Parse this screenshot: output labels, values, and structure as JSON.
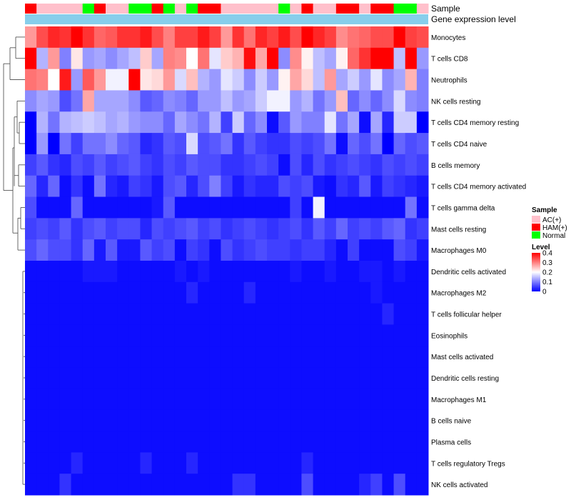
{
  "chart_data": {
    "type": "heatmap",
    "title": "",
    "annotation_rows": [
      "Sample",
      "Gene expression level"
    ],
    "row_labels": [
      "Monocytes",
      "T cells CD8",
      "Neutrophils",
      "NK cells resting",
      "T cells CD4 memory resting",
      "T cells CD4 naive",
      "B cells memory",
      "T cells CD4 memory activated",
      "T cells gamma delta",
      "Mast cells resting",
      "Macrophages M0",
      "Dendritic cells activated",
      "Macrophages M2",
      "T cells follicular helper",
      "Eosinophils",
      "Mast cells activated",
      "Dendritic cells resting",
      "Macrophages M1",
      "B cells naive",
      "Plasma cells",
      "T cells regulatory  Tregs",
      "NK cells activated"
    ],
    "sample_groups": [
      "HAM(+)",
      "AC(+)",
      "AC(+)",
      "AC(+)",
      "AC(+)",
      "Normal",
      "HAM(+)",
      "AC(+)",
      "AC(+)",
      "Normal",
      "Normal",
      "HAM(+)",
      "Normal",
      "AC(+)",
      "Normal",
      "HAM(+)",
      "HAM(+)",
      "AC(+)",
      "AC(+)",
      "AC(+)",
      "AC(+)",
      "AC(+)",
      "Normal",
      "AC(+)",
      "HAM(+)",
      "AC(+)",
      "AC(+)",
      "HAM(+)",
      "HAM(+)",
      "AC(+)",
      "HAM(+)",
      "HAM(+)",
      "Normal",
      "Normal",
      "AC(+)"
    ],
    "values": [
      [
        0.28,
        0.34,
        0.37,
        0.36,
        0.4,
        0.36,
        0.32,
        0.33,
        0.36,
        0.36,
        0.38,
        0.34,
        0.3,
        0.35,
        0.35,
        0.38,
        0.35,
        0.28,
        0.36,
        0.31,
        0.37,
        0.35,
        0.38,
        0.34,
        0.4,
        0.37,
        0.35,
        0.29,
        0.31,
        0.32,
        0.34,
        0.34,
        0.4,
        0.35,
        0.34
      ],
      [
        0.4,
        0.14,
        0.28,
        0.1,
        0.22,
        0.12,
        0.13,
        0.11,
        0.13,
        0.15,
        0.24,
        0.13,
        0.3,
        0.29,
        0.2,
        0.31,
        0.18,
        0.24,
        0.26,
        0.39,
        0.27,
        0.4,
        0.11,
        0.29,
        0.21,
        0.15,
        0.13,
        0.21,
        0.32,
        0.36,
        0.4,
        0.4,
        0.15,
        0.4,
        0.12
      ],
      [
        0.31,
        0.3,
        0.2,
        0.38,
        0.12,
        0.33,
        0.28,
        0.19,
        0.19,
        0.4,
        0.22,
        0.23,
        0.28,
        0.17,
        0.25,
        0.14,
        0.12,
        0.18,
        0.16,
        0.11,
        0.16,
        0.12,
        0.21,
        0.27,
        0.23,
        0.15,
        0.28,
        0.13,
        0.16,
        0.12,
        0.18,
        0.11,
        0.13,
        0.26,
        0.1
      ],
      [
        0.11,
        0.13,
        0.12,
        0.06,
        0.09,
        0.27,
        0.13,
        0.13,
        0.13,
        0.11,
        0.07,
        0.08,
        0.11,
        0.1,
        0.08,
        0.12,
        0.12,
        0.15,
        0.12,
        0.13,
        0.16,
        0.19,
        0.19,
        0.12,
        0.14,
        0.09,
        0.12,
        0.25,
        0.08,
        0.11,
        0.08,
        0.11,
        0.17,
        0.11,
        0.1
      ],
      [
        0.0,
        0.14,
        0.09,
        0.14,
        0.15,
        0.16,
        0.15,
        0.13,
        0.14,
        0.12,
        0.11,
        0.11,
        0.08,
        0.13,
        0.11,
        0.09,
        0.14,
        0.05,
        0.16,
        0.08,
        0.11,
        0.01,
        0.07,
        0.12,
        0.1,
        0.1,
        0.18,
        0.09,
        0.13,
        0.01,
        0.13,
        0.03,
        0.16,
        0.16,
        0.0
      ],
      [
        0.0,
        0.12,
        0.0,
        0.09,
        0.05,
        0.09,
        0.09,
        0.11,
        0.08,
        0.07,
        0.03,
        0.04,
        0.07,
        0.06,
        0.17,
        0.06,
        0.07,
        0.09,
        0.04,
        0.07,
        0.05,
        0.04,
        0.04,
        0.06,
        0.05,
        0.06,
        0.09,
        0.01,
        0.08,
        0.06,
        0.09,
        0.0,
        0.08,
        0.06,
        0.07
      ],
      [
        0.05,
        0.07,
        0.04,
        0.03,
        0.06,
        0.05,
        0.07,
        0.05,
        0.06,
        0.07,
        0.05,
        0.04,
        0.06,
        0.05,
        0.07,
        0.06,
        0.06,
        0.04,
        0.04,
        0.05,
        0.06,
        0.05,
        0.01,
        0.06,
        0.03,
        0.06,
        0.04,
        0.05,
        0.06,
        0.05,
        0.04,
        0.06,
        0.05,
        0.06,
        0.05
      ],
      [
        0.08,
        0.03,
        0.08,
        0.01,
        0.04,
        0.01,
        0.09,
        0.03,
        0.02,
        0.05,
        0.04,
        0.02,
        0.06,
        0.07,
        0.03,
        0.06,
        0.1,
        0.05,
        0.02,
        0.04,
        0.03,
        0.03,
        0.06,
        0.05,
        0.06,
        0.02,
        0.01,
        0.04,
        0.03,
        0.07,
        0.02,
        0.05,
        0.04,
        0.03,
        0.02
      ],
      [
        0.06,
        0.01,
        0.01,
        0.01,
        0.08,
        0.01,
        0.01,
        0.01,
        0.01,
        0.01,
        0.01,
        0.02,
        0.07,
        0.01,
        0.01,
        0.01,
        0.01,
        0.01,
        0.01,
        0.01,
        0.01,
        0.01,
        0.01,
        0.05,
        0.01,
        0.19,
        0.01,
        0.01,
        0.01,
        0.01,
        0.01,
        0.01,
        0.01,
        0.09,
        0.01
      ],
      [
        0.05,
        0.06,
        0.05,
        0.07,
        0.04,
        0.06,
        0.07,
        0.05,
        0.06,
        0.06,
        0.03,
        0.06,
        0.05,
        0.06,
        0.07,
        0.05,
        0.06,
        0.04,
        0.05,
        0.06,
        0.05,
        0.04,
        0.05,
        0.06,
        0.04,
        0.07,
        0.05,
        0.08,
        0.05,
        0.06,
        0.05,
        0.07,
        0.08,
        0.04,
        0.05
      ],
      [
        0.06,
        0.08,
        0.06,
        0.06,
        0.04,
        0.08,
        0.02,
        0.07,
        0.02,
        0.02,
        0.07,
        0.05,
        0.06,
        0.01,
        0.05,
        0.04,
        0.01,
        0.06,
        0.04,
        0.05,
        0.06,
        0.05,
        0.05,
        0.04,
        0.05,
        0.05,
        0.03,
        0.01,
        0.05,
        0.01,
        0.01,
        0.01,
        0.06,
        0.05,
        0.02
      ],
      [
        0.01,
        0.01,
        0.01,
        0.01,
        0.01,
        0.02,
        0.02,
        0.02,
        0.01,
        0.01,
        0.01,
        0.01,
        0.01,
        0.02,
        0.01,
        0.02,
        0.01,
        0.01,
        0.01,
        0.01,
        0.01,
        0.01,
        0.01,
        0.02,
        0.01,
        0.01,
        0.02,
        0.01,
        0.01,
        0.02,
        0.02,
        0.01,
        0.02,
        0.01,
        0.01
      ],
      [
        0.01,
        0.01,
        0.01,
        0.01,
        0.01,
        0.01,
        0.01,
        0.01,
        0.01,
        0.01,
        0.01,
        0.01,
        0.01,
        0.01,
        0.03,
        0.01,
        0.01,
        0.01,
        0.01,
        0.03,
        0.01,
        0.01,
        0.01,
        0.01,
        0.01,
        0.01,
        0.01,
        0.01,
        0.01,
        0.01,
        0.02,
        0.01,
        0.01,
        0.01,
        0.01
      ],
      [
        0.01,
        0.01,
        0.01,
        0.01,
        0.01,
        0.01,
        0.01,
        0.01,
        0.01,
        0.01,
        0.01,
        0.01,
        0.01,
        0.01,
        0.01,
        0.01,
        0.01,
        0.01,
        0.01,
        0.01,
        0.01,
        0.01,
        0.01,
        0.01,
        0.01,
        0.01,
        0.01,
        0.01,
        0.01,
        0.01,
        0.01,
        0.03,
        0.01,
        0.01,
        0.01
      ],
      [
        0.01,
        0.01,
        0.01,
        0.01,
        0.01,
        0.01,
        0.01,
        0.01,
        0.01,
        0.01,
        0.01,
        0.01,
        0.01,
        0.01,
        0.01,
        0.01,
        0.01,
        0.01,
        0.01,
        0.01,
        0.01,
        0.01,
        0.01,
        0.01,
        0.01,
        0.01,
        0.01,
        0.01,
        0.01,
        0.01,
        0.01,
        0.01,
        0.01,
        0.01,
        0.01
      ],
      [
        0.01,
        0.01,
        0.01,
        0.01,
        0.01,
        0.01,
        0.01,
        0.01,
        0.01,
        0.01,
        0.01,
        0.01,
        0.01,
        0.01,
        0.01,
        0.01,
        0.01,
        0.01,
        0.01,
        0.01,
        0.01,
        0.01,
        0.01,
        0.01,
        0.01,
        0.01,
        0.01,
        0.01,
        0.01,
        0.01,
        0.01,
        0.01,
        0.01,
        0.01,
        0.01
      ],
      [
        0.01,
        0.01,
        0.01,
        0.01,
        0.01,
        0.01,
        0.01,
        0.01,
        0.01,
        0.01,
        0.01,
        0.01,
        0.01,
        0.01,
        0.01,
        0.01,
        0.01,
        0.01,
        0.01,
        0.01,
        0.01,
        0.01,
        0.01,
        0.01,
        0.01,
        0.01,
        0.01,
        0.01,
        0.01,
        0.01,
        0.01,
        0.01,
        0.01,
        0.01,
        0.01
      ],
      [
        0.01,
        0.01,
        0.01,
        0.01,
        0.01,
        0.01,
        0.01,
        0.01,
        0.01,
        0.01,
        0.01,
        0.01,
        0.01,
        0.01,
        0.01,
        0.01,
        0.01,
        0.01,
        0.01,
        0.01,
        0.01,
        0.01,
        0.01,
        0.01,
        0.01,
        0.01,
        0.01,
        0.01,
        0.01,
        0.01,
        0.01,
        0.01,
        0.01,
        0.01,
        0.01
      ],
      [
        0.01,
        0.01,
        0.01,
        0.01,
        0.01,
        0.01,
        0.01,
        0.01,
        0.01,
        0.01,
        0.01,
        0.01,
        0.01,
        0.01,
        0.01,
        0.01,
        0.01,
        0.01,
        0.01,
        0.01,
        0.01,
        0.01,
        0.01,
        0.01,
        0.01,
        0.01,
        0.01,
        0.01,
        0.01,
        0.01,
        0.01,
        0.01,
        0.01,
        0.01,
        0.01
      ],
      [
        0.01,
        0.01,
        0.01,
        0.01,
        0.01,
        0.01,
        0.01,
        0.01,
        0.01,
        0.01,
        0.01,
        0.01,
        0.01,
        0.01,
        0.01,
        0.01,
        0.01,
        0.01,
        0.01,
        0.01,
        0.01,
        0.01,
        0.01,
        0.01,
        0.01,
        0.01,
        0.01,
        0.01,
        0.01,
        0.01,
        0.01,
        0.01,
        0.01,
        0.01,
        0.01
      ],
      [
        0.01,
        0.01,
        0.01,
        0.01,
        0.03,
        0.01,
        0.01,
        0.01,
        0.01,
        0.01,
        0.03,
        0.01,
        0.01,
        0.01,
        0.03,
        0.01,
        0.01,
        0.01,
        0.01,
        0.01,
        0.01,
        0.01,
        0.01,
        0.01,
        0.03,
        0.01,
        0.01,
        0.01,
        0.01,
        0.01,
        0.01,
        0.01,
        0.01,
        0.01,
        0.01
      ],
      [
        0.01,
        0.01,
        0.01,
        0.04,
        0.01,
        0.01,
        0.01,
        0.01,
        0.01,
        0.01,
        0.01,
        0.01,
        0.01,
        0.01,
        0.01,
        0.01,
        0.01,
        0.01,
        0.04,
        0.04,
        0.01,
        0.01,
        0.01,
        0.01,
        0.06,
        0.01,
        0.01,
        0.01,
        0.01,
        0.03,
        0.05,
        0.01,
        0.06,
        0.01,
        0.01
      ]
    ],
    "legend": {
      "sample_title": "Sample",
      "sample_items": [
        {
          "label": "AC(+)",
          "color": "#FFC0CB"
        },
        {
          "label": "HAM(+)",
          "color": "#FF0000"
        },
        {
          "label": "Normal",
          "color": "#00FF00"
        }
      ],
      "level_title": "Level",
      "level_ticks": [
        "0.4",
        "0.3",
        "0.2",
        "0.1",
        "0"
      ],
      "level_range": [
        0,
        0.4
      ],
      "level_colors": {
        "low": "#0000FF",
        "mid": "#FFFFFF",
        "high": "#FF0000"
      }
    },
    "expression_bar_color": "#87CEEB"
  }
}
